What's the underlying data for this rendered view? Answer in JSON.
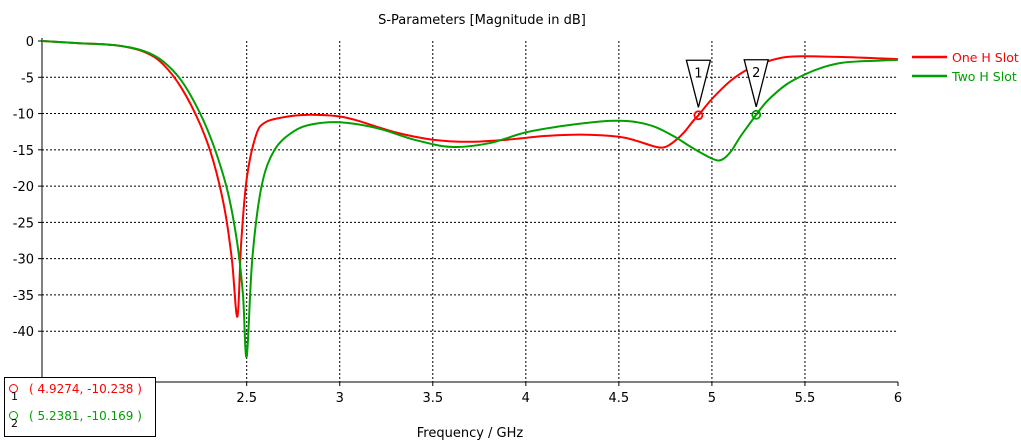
{
  "chart_data": {
    "type": "line",
    "title": "S-Parameters [Magnitude in dB]",
    "xlabel": "Frequency / GHz",
    "ylabel": "",
    "xlim": [
      1.4,
      6
    ],
    "ylim": [
      -47,
      0
    ],
    "x_ticks": [
      "2.5",
      "3",
      "3.5",
      "4",
      "4.5",
      "5",
      "5.5",
      "6"
    ],
    "y_ticks": [
      "0",
      "-5",
      "-10",
      "-15",
      "-20",
      "-25",
      "-30",
      "-35",
      "-40"
    ],
    "grid": true,
    "legend_position": "right",
    "series": [
      {
        "name": "One H Slot",
        "color": "#ff0000",
        "x": [
          1.4,
          1.6,
          1.8,
          1.95,
          2.05,
          2.15,
          2.25,
          2.32,
          2.38,
          2.42,
          2.45,
          2.47,
          2.5,
          2.55,
          2.6,
          2.7,
          2.8,
          2.9,
          3.0,
          3.1,
          3.3,
          3.5,
          3.7,
          3.9,
          4.1,
          4.3,
          4.5,
          4.6,
          4.7,
          4.75,
          4.8,
          4.85,
          4.9,
          4.9274,
          5.0,
          5.1,
          5.2,
          5.3,
          5.4,
          5.5,
          5.7,
          5.9,
          6.0
        ],
        "y": [
          0,
          -0.3,
          -0.6,
          -1.5,
          -3.2,
          -6.5,
          -11.5,
          -16.5,
          -23,
          -30,
          -38,
          -28,
          -19,
          -13,
          -11.2,
          -10.5,
          -10.2,
          -10.2,
          -10.4,
          -11,
          -12.6,
          -13.6,
          -13.9,
          -13.6,
          -13.1,
          -12.9,
          -13.2,
          -13.8,
          -14.6,
          -14.6,
          -13.8,
          -12.6,
          -11,
          -10.238,
          -8,
          -5.5,
          -3.8,
          -2.8,
          -2.2,
          -2.1,
          -2.2,
          -2.4,
          -2.5
        ]
      },
      {
        "name": "Two H Slot",
        "color": "#00a000",
        "x": [
          1.4,
          1.6,
          1.8,
          1.95,
          2.05,
          2.15,
          2.25,
          2.33,
          2.4,
          2.45,
          2.48,
          2.5,
          2.53,
          2.58,
          2.65,
          2.75,
          2.85,
          3.0,
          3.2,
          3.4,
          3.6,
          3.8,
          4.0,
          4.2,
          4.4,
          4.5,
          4.6,
          4.7,
          4.8,
          4.9,
          5.0,
          5.05,
          5.1,
          5.15,
          5.2,
          5.2381,
          5.3,
          5.4,
          5.5,
          5.6,
          5.7,
          5.8,
          5.9,
          6.0
        ],
        "y": [
          0,
          -0.3,
          -0.6,
          -1.4,
          -2.8,
          -5.5,
          -10,
          -15,
          -21,
          -28,
          -35,
          -43.5,
          -30,
          -20,
          -15,
          -12.5,
          -11.5,
          -11.2,
          -12,
          -13.6,
          -14.6,
          -14.1,
          -12.6,
          -11.7,
          -11.1,
          -11,
          -11.2,
          -11.9,
          -13.2,
          -14.8,
          -16.2,
          -16.4,
          -15.3,
          -13.3,
          -11.5,
          -10.169,
          -8.2,
          -6,
          -4.6,
          -3.6,
          -3,
          -2.8,
          -2.7,
          -2.6
        ]
      }
    ],
    "markers": [
      {
        "index": "1",
        "x": 4.9274,
        "y": -10.238,
        "readout": "( 4.9274, -10.238 )",
        "color": "#ff0000"
      },
      {
        "index": "2",
        "x": 5.2381,
        "y": -10.169,
        "readout": "( 5.2381, -10.169 )",
        "color": "#00a000"
      }
    ]
  }
}
